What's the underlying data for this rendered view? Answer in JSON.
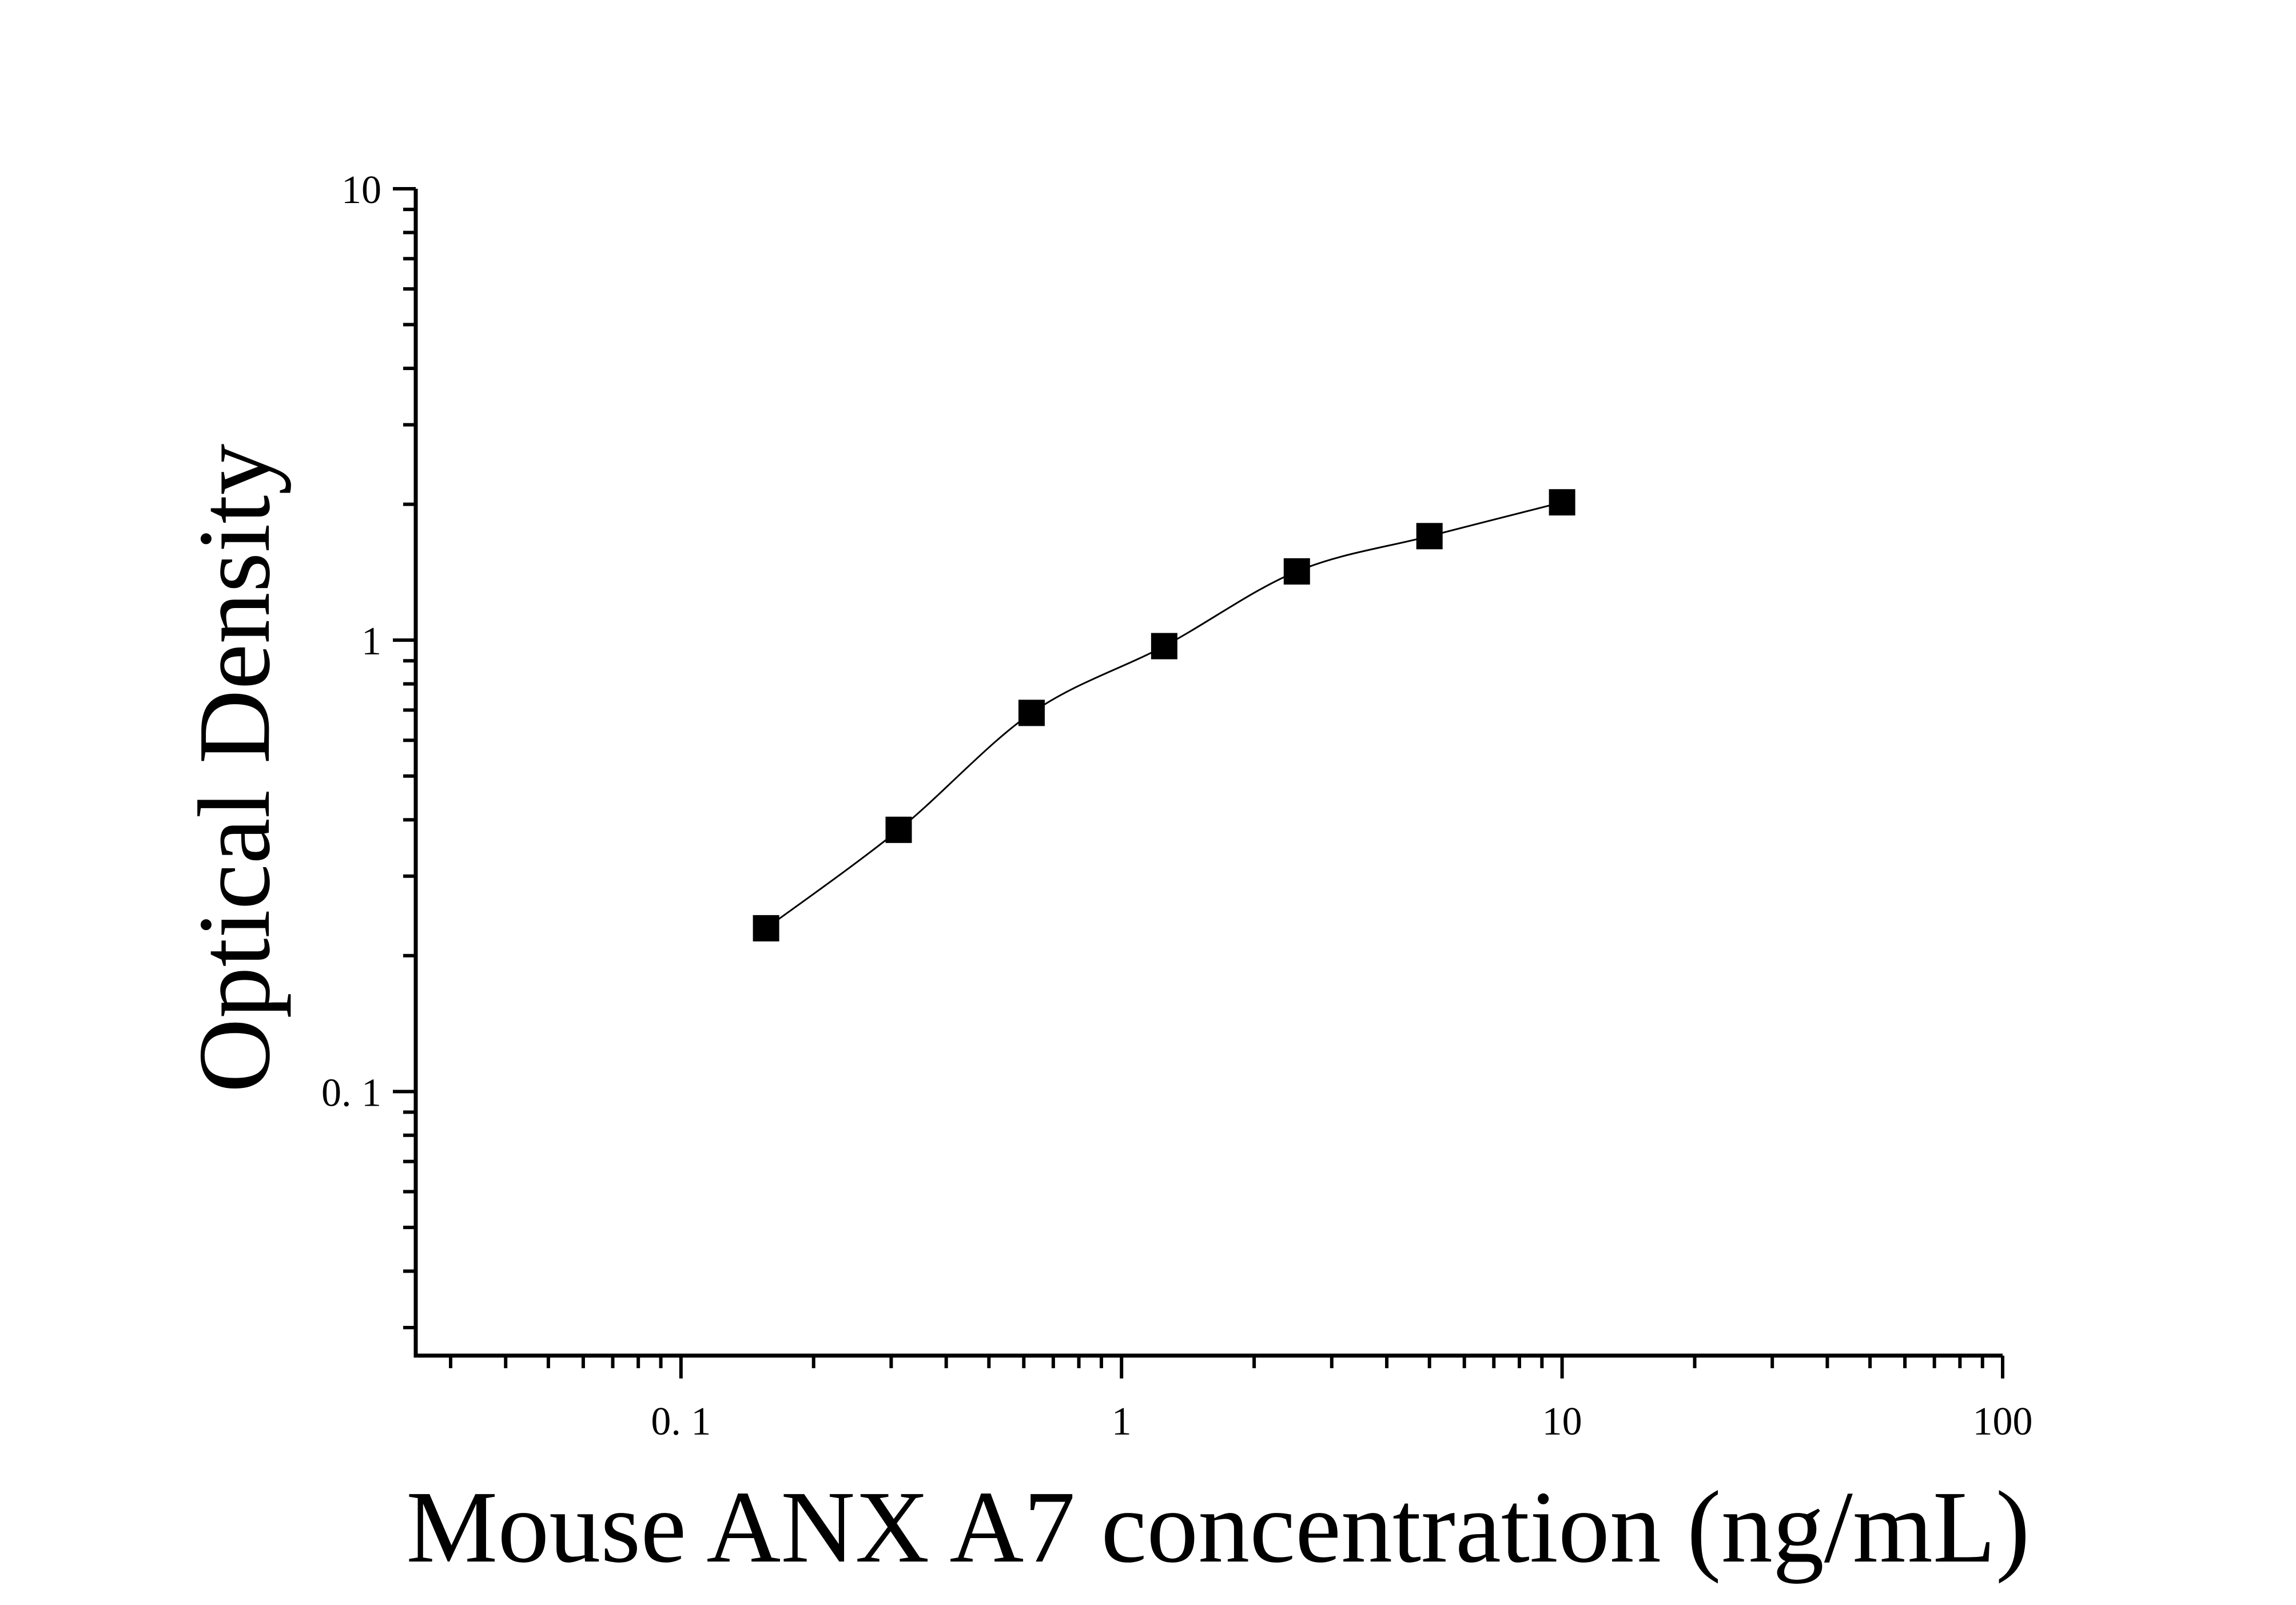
{
  "chart_data": {
    "type": "scatter",
    "xlabel": "Mouse ANX A7 concentration (ng/mL)",
    "ylabel": "Optical Density",
    "x_scale": "log",
    "y_scale": "log",
    "xlim": [
      0.025,
      100
    ],
    "ylim": [
      0.026,
      10
    ],
    "x_ticks": [
      {
        "value": 0.1,
        "label": "0. 1"
      },
      {
        "value": 1,
        "label": "1"
      },
      {
        "value": 10,
        "label": "10"
      },
      {
        "value": 100,
        "label": "100"
      }
    ],
    "y_ticks": [
      {
        "value": 0.1,
        "label": "0. 1"
      },
      {
        "value": 1,
        "label": "1"
      },
      {
        "value": 10,
        "label": "10"
      }
    ],
    "grid": false,
    "series": [
      {
        "x": [
          0.156,
          0.312,
          0.625,
          1.25,
          2.5,
          5,
          10
        ],
        "y": [
          0.23,
          0.38,
          0.69,
          0.97,
          1.42,
          1.7,
          2.02
        ],
        "marker": "square",
        "fit_line": true
      }
    ],
    "colors": {
      "marker": "#000000",
      "line": "#000000",
      "axis": "#000000"
    }
  }
}
